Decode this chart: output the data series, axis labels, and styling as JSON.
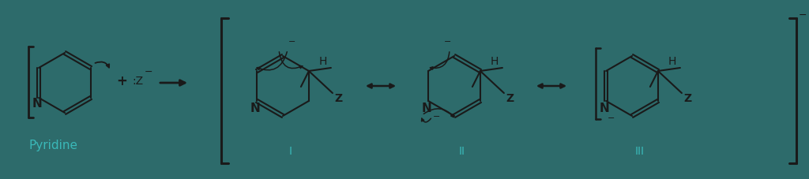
{
  "bg_color": "#2d6b6b",
  "structure_color": "#1a1a1a",
  "roman_color": "#3ab8b8",
  "pyridine_color": "#3ab8b8",
  "fig_width": 10.24,
  "fig_height": 2.27,
  "dpi": 100,
  "pyridine_label": "Pyridine",
  "roman_I": "I",
  "roman_II": "II",
  "roman_III": "III"
}
